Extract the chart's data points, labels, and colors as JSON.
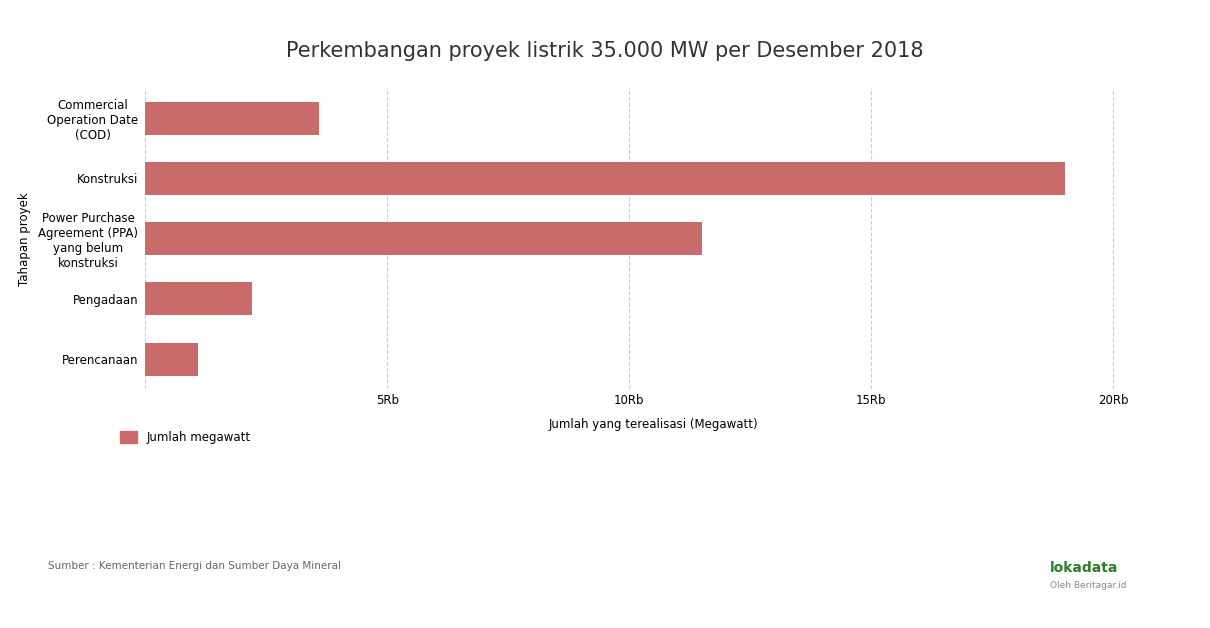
{
  "title": "Perkembangan proyek listrik 35.000 MW per Desember 2018",
  "categories": [
    "Perencanaan",
    "Pengadaan",
    "Power Purchase\nAgreement (PPA)\nyang belum\nkonstruksi",
    "Konstruksi",
    "Commercial\nOperation Date\n(COD)"
  ],
  "values": [
    1100,
    2200,
    11500,
    19000,
    3600
  ],
  "bar_color": "#c96b6b",
  "xlabel": "Jumlah yang terealisasi (Megawatt)",
  "ylabel": "Tahapan proyek",
  "xlim": [
    0,
    21000
  ],
  "xticks": [
    0,
    5000,
    10000,
    15000,
    20000
  ],
  "xtick_labels": [
    "",
    "5Rb",
    "10Rb",
    "15Rb",
    "20Rb"
  ],
  "legend_label": "Jumlah megawatt",
  "source_text": "Sumber : Kementerian Energi dan Sumber Daya Mineral",
  "title_fontsize": 15,
  "label_fontsize": 8.5,
  "tick_fontsize": 8.5,
  "background_color": "#ffffff",
  "grid_color": "#cccccc",
  "bar_height": 0.55
}
